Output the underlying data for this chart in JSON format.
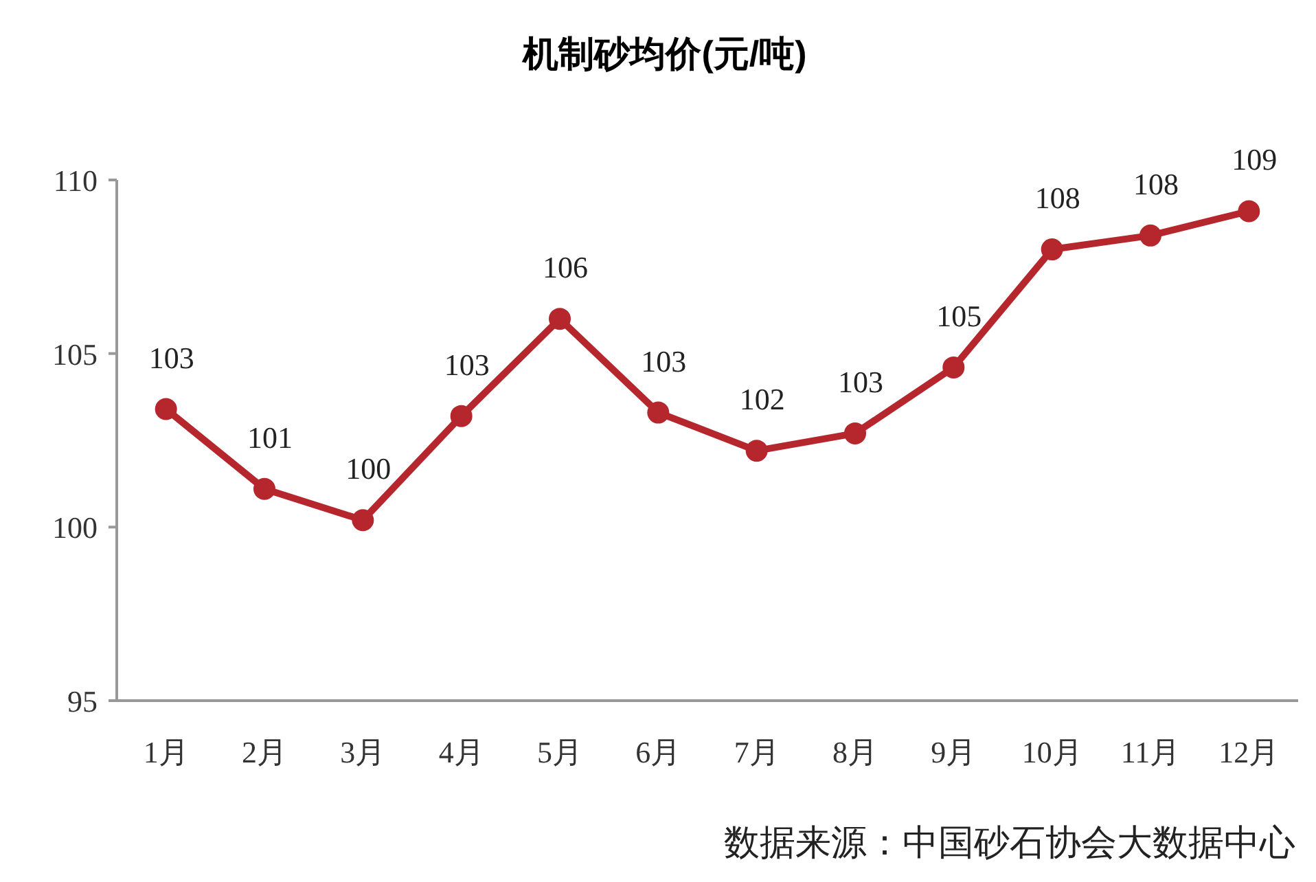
{
  "chart_data": {
    "type": "line",
    "title": "机制砂均价(元/吨)",
    "categories": [
      "1月",
      "2月",
      "3月",
      "4月",
      "5月",
      "6月",
      "7月",
      "8月",
      "9月",
      "10月",
      "11月",
      "12月"
    ],
    "series": [
      {
        "color": "#b5272d",
        "values": [
          103.4,
          101.1,
          100.2,
          103.2,
          106.0,
          103.3,
          102.2,
          102.7,
          104.6,
          108.0,
          108.4,
          109.1
        ],
        "value_labels": [
          "103",
          "101",
          "100",
          "103",
          "106",
          "103",
          "102",
          "103",
          "105",
          "108",
          "108",
          "109"
        ]
      }
    ],
    "ylim": [
      95,
      110
    ],
    "yticks": [
      95,
      100,
      105,
      110
    ],
    "grid": false,
    "marker": "circle",
    "line_style": "solid",
    "annotations": [
      "数据来源：中国砂石协会大数据中心"
    ]
  }
}
